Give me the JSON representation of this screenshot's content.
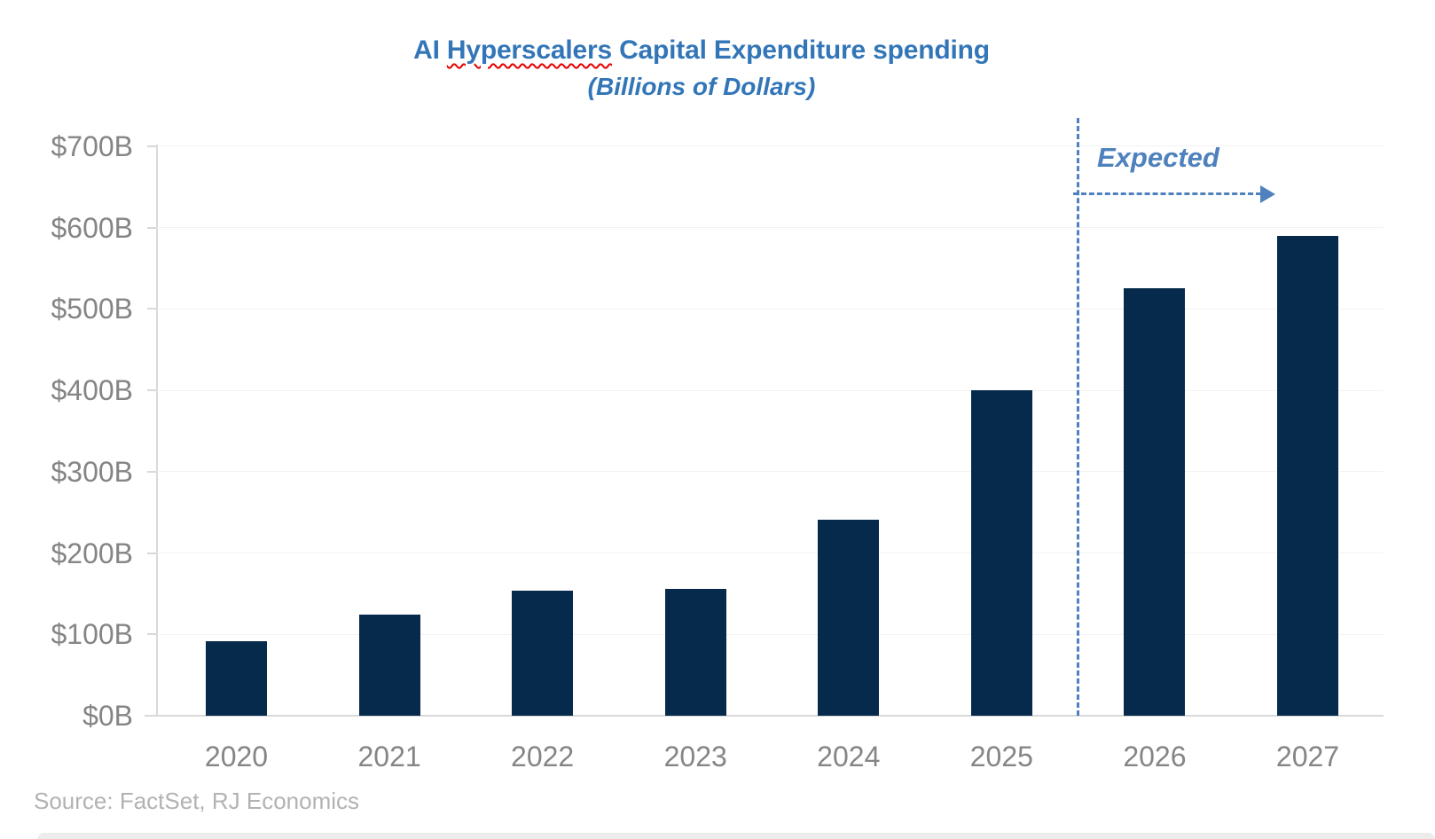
{
  "header": {
    "title_prefix": "AI ",
    "title_squiggle": "Hyperscalers",
    "title_suffix": " Capital Expenditure spending",
    "subtitle": "(Billions of Dollars)"
  },
  "annotation": {
    "label": "Expected"
  },
  "source": {
    "text": "Source: FactSet, RJ Economics"
  },
  "colors": {
    "title_blue": "#3376B8",
    "annotation_blue": "#4E81BD",
    "bar_navy": "#052A4C",
    "axis_gray": "#D9D9D9",
    "gridline_gray": "#F2F2F2",
    "label_gray": "#858585",
    "source_gray": "#B2B2B2",
    "squiggle_red": "#E50000"
  },
  "chart_data": {
    "type": "bar",
    "title": "AI Hyperscalers Capital Expenditure spending",
    "subtitle": "(Billions of Dollars)",
    "categories": [
      "2020",
      "2021",
      "2022",
      "2023",
      "2024",
      "2025",
      "2026",
      "2027"
    ],
    "values": [
      92,
      124,
      154,
      156,
      241,
      400,
      525,
      590
    ],
    "unit": "billions of US dollars",
    "xlabel": "",
    "ylabel": "",
    "ylim": [
      0,
      700
    ],
    "ytick_step": 100,
    "ytick_labels": [
      "$0B",
      "$100B",
      "$200B",
      "$300B",
      "$400B",
      "$500B",
      "$600B",
      "$700B"
    ],
    "grid": true,
    "legend": false,
    "bar_color": "#052A4C",
    "annotation": {
      "text": "Expected",
      "applies_to": [
        "2026",
        "2027"
      ],
      "divider_between": [
        "2025",
        "2026"
      ],
      "style": "dashed vertical line with dashed right arrow"
    },
    "source": "Source: FactSet, RJ Economics"
  }
}
